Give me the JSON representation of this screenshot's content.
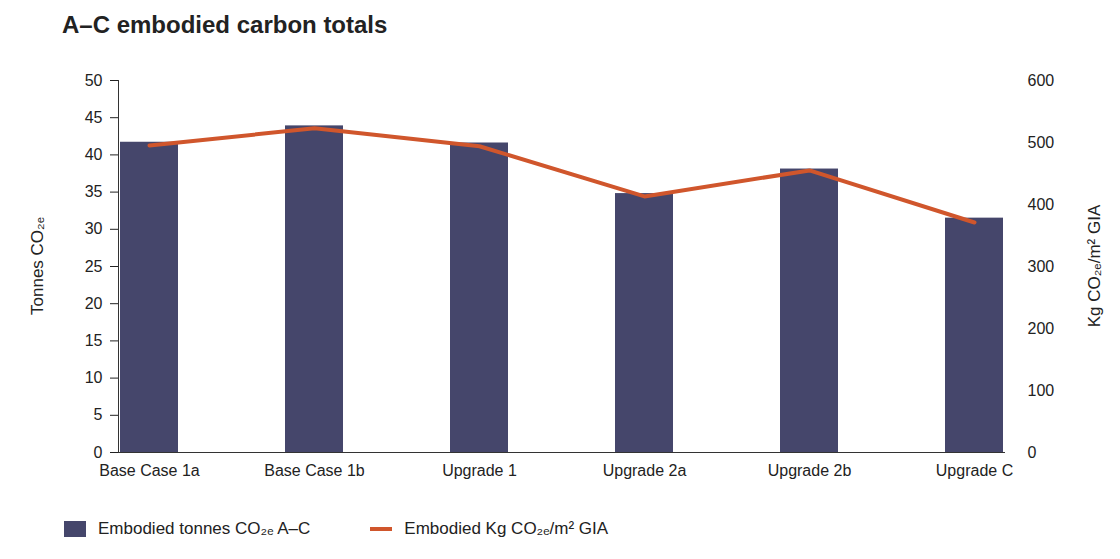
{
  "chart_data": {
    "type": "bar",
    "title": "A–C embodied carbon totals",
    "categories": [
      "Base Case 1a",
      "Base Case 1b",
      "Upgrade 1",
      "Upgrade 2a",
      "Upgrade 2b",
      "Upgrade C"
    ],
    "series": [
      {
        "name": "Embodied tonnes CO₂ₑ A–C",
        "type": "bar",
        "color": "#45466b",
        "values": [
          41.7,
          43.9,
          41.6,
          34.8,
          38.1,
          31.5
        ]
      },
      {
        "name": "Embodied Kg CO₂ₑ/m² GIA",
        "type": "line",
        "color": "#d0562c",
        "axis": "y2",
        "values": [
          495,
          523,
          494,
          413,
          455,
          371
        ]
      }
    ],
    "y_label": "Tonnes CO₂ₑ",
    "y2_label": "Kg CO₂ₑ/m² GIA",
    "ylim": [
      0,
      50
    ],
    "yticks": [
      0,
      5,
      10,
      15,
      20,
      25,
      30,
      35,
      40,
      45,
      50
    ],
    "y2lim": [
      0,
      600
    ],
    "y2ticks": [
      0,
      100,
      200,
      300,
      400,
      500,
      600
    ],
    "grid": false,
    "legend": "bottom"
  }
}
